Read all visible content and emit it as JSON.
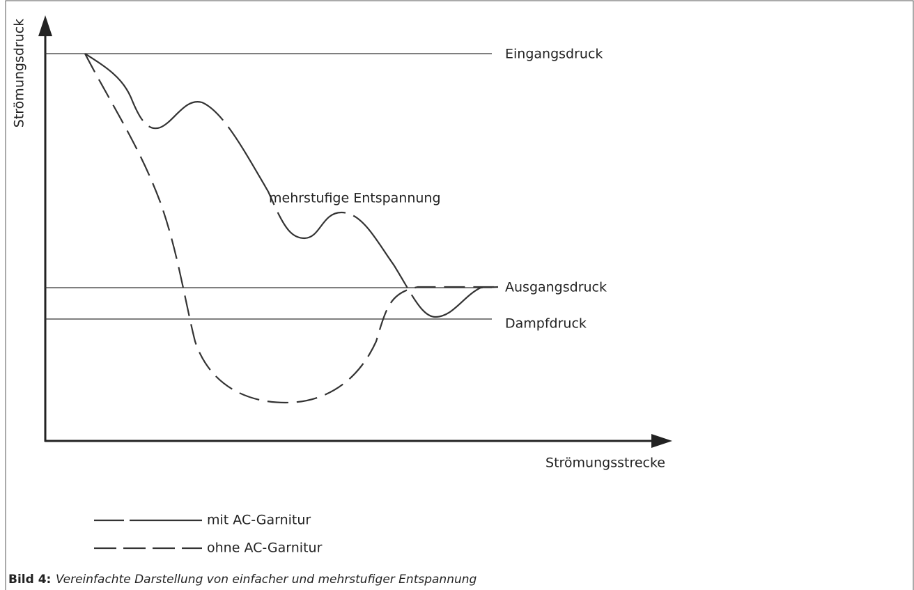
{
  "axes": {
    "y_label": "Strömungsdruck",
    "x_label": "Strömungsstrecke"
  },
  "levels": {
    "inlet": "Eingangsdruck",
    "outlet": "Ausgangsdruck",
    "vapor": "Dampfdruck"
  },
  "curve_label": "mehrstufige Entspannung",
  "legend": [
    "mit AC-Garnitur",
    "ohne AC-Garnitur"
  ],
  "caption": {
    "number": "Bild 4:",
    "text": "Vereinfachte Darstellung von einfacher und mehrstufiger Entspannung"
  }
}
